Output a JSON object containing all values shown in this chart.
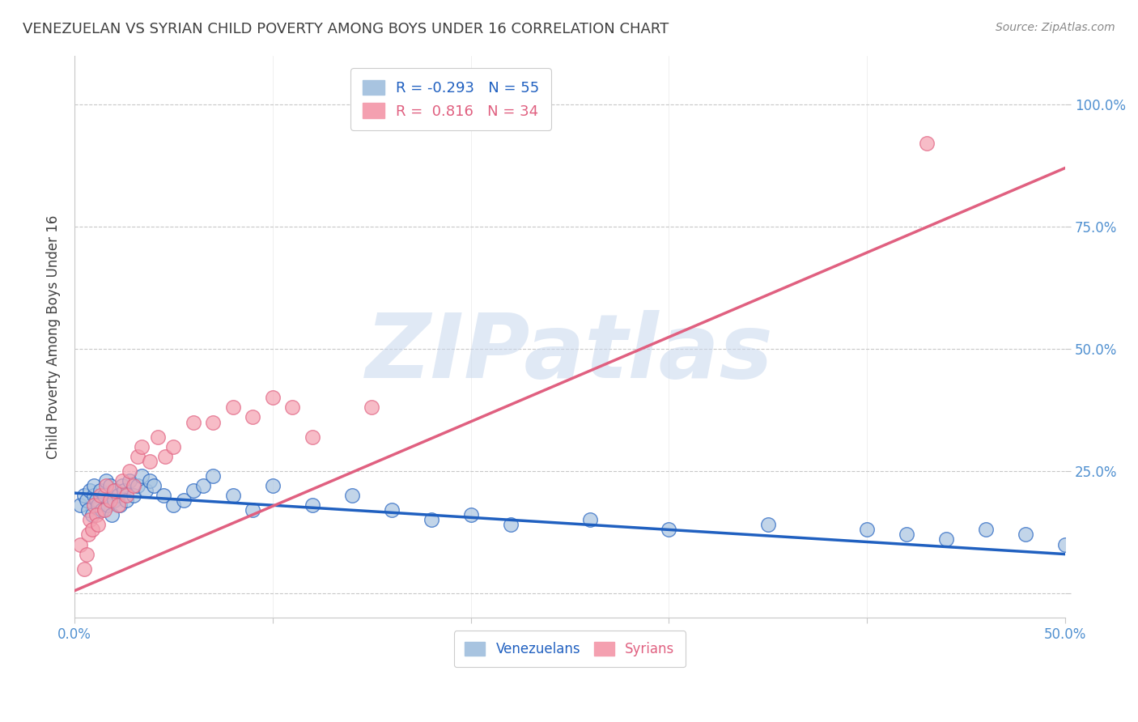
{
  "title": "VENEZUELAN VS SYRIAN CHILD POVERTY AMONG BOYS UNDER 16 CORRELATION CHART",
  "source": "Source: ZipAtlas.com",
  "ylabel": "Child Poverty Among Boys Under 16",
  "watermark": "ZIPatlas",
  "xlim": [
    0.0,
    0.5
  ],
  "ylim": [
    -0.05,
    1.1
  ],
  "xticks": [
    0.0,
    0.1,
    0.2,
    0.3,
    0.4,
    0.5
  ],
  "xticklabels": [
    "0.0%",
    "",
    "",
    "",
    "",
    "50.0%"
  ],
  "yticks": [
    0.0,
    0.25,
    0.5,
    0.75,
    1.0
  ],
  "yticklabels": [
    "",
    "25.0%",
    "50.0%",
    "75.0%",
    "100.0%"
  ],
  "venezuelan_color": "#a8c4e0",
  "syrian_color": "#f4a0b0",
  "venezuelan_line_color": "#2060c0",
  "syrian_line_color": "#e06080",
  "legend_r_venezuelan": "-0.293",
  "legend_n_venezuelan": "55",
  "legend_r_syrian": "0.816",
  "legend_n_syrian": "34",
  "venezuelan_scatter_x": [
    0.003,
    0.005,
    0.006,
    0.007,
    0.008,
    0.009,
    0.01,
    0.01,
    0.011,
    0.012,
    0.013,
    0.014,
    0.015,
    0.016,
    0.017,
    0.018,
    0.019,
    0.02,
    0.021,
    0.022,
    0.023,
    0.024,
    0.025,
    0.026,
    0.028,
    0.03,
    0.032,
    0.034,
    0.036,
    0.038,
    0.04,
    0.045,
    0.05,
    0.055,
    0.06,
    0.065,
    0.07,
    0.08,
    0.09,
    0.1,
    0.12,
    0.14,
    0.16,
    0.18,
    0.2,
    0.22,
    0.26,
    0.3,
    0.35,
    0.4,
    0.42,
    0.44,
    0.46,
    0.48,
    0.5
  ],
  "venezuelan_scatter_y": [
    0.18,
    0.2,
    0.19,
    0.17,
    0.21,
    0.16,
    0.2,
    0.22,
    0.19,
    0.18,
    0.21,
    0.17,
    0.2,
    0.23,
    0.18,
    0.22,
    0.16,
    0.19,
    0.21,
    0.2,
    0.18,
    0.22,
    0.21,
    0.19,
    0.23,
    0.2,
    0.22,
    0.24,
    0.21,
    0.23,
    0.22,
    0.2,
    0.18,
    0.19,
    0.21,
    0.22,
    0.24,
    0.2,
    0.17,
    0.22,
    0.18,
    0.2,
    0.17,
    0.15,
    0.16,
    0.14,
    0.15,
    0.13,
    0.14,
    0.13,
    0.12,
    0.11,
    0.13,
    0.12,
    0.1
  ],
  "syrian_scatter_x": [
    0.003,
    0.005,
    0.006,
    0.007,
    0.008,
    0.009,
    0.01,
    0.011,
    0.012,
    0.013,
    0.015,
    0.016,
    0.018,
    0.02,
    0.022,
    0.024,
    0.026,
    0.028,
    0.03,
    0.032,
    0.034,
    0.038,
    0.042,
    0.046,
    0.05,
    0.06,
    0.07,
    0.08,
    0.09,
    0.1,
    0.11,
    0.12,
    0.15,
    0.43
  ],
  "syrian_scatter_y": [
    0.1,
    0.05,
    0.08,
    0.12,
    0.15,
    0.13,
    0.18,
    0.16,
    0.14,
    0.2,
    0.17,
    0.22,
    0.19,
    0.21,
    0.18,
    0.23,
    0.2,
    0.25,
    0.22,
    0.28,
    0.3,
    0.27,
    0.32,
    0.28,
    0.3,
    0.35,
    0.35,
    0.38,
    0.36,
    0.4,
    0.38,
    0.32,
    0.38,
    0.92
  ],
  "venezuelan_trend_x": [
    0.0,
    0.5
  ],
  "venezuelan_trend_y": [
    0.205,
    0.08
  ],
  "syrian_trend_x": [
    0.0,
    0.5
  ],
  "syrian_trend_y": [
    0.005,
    0.87
  ],
  "grid_color": "#c8c8c8",
  "background_color": "#ffffff",
  "title_color": "#404040",
  "axis_color": "#5090d0",
  "watermark_color": "#c8d8ee",
  "watermark_alpha": 0.55
}
